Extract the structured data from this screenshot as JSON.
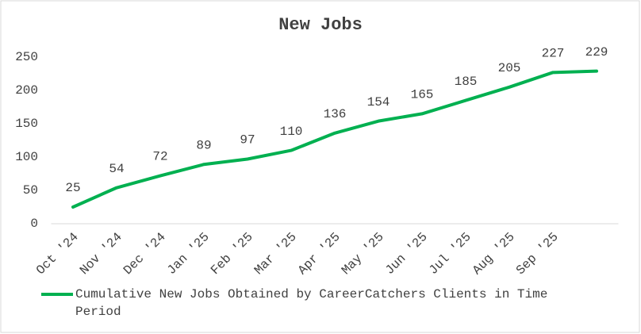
{
  "chart_data": {
    "type": "line",
    "title": "New Jobs",
    "categories": [
      "Oct '24",
      "Nov '24",
      "Dec '24",
      "Jan '25",
      "Feb '25",
      "Mar '25",
      "Apr '25",
      "May '25",
      "Jun '25",
      "Jul '25",
      "Aug '25",
      "Sep '25",
      null
    ],
    "series": [
      {
        "name": "Cumulative New Jobs Obtained by CareerCatchers Clients in Time Period",
        "color": "#00b050",
        "values": [
          25,
          54,
          72,
          89,
          97,
          110,
          136,
          154,
          165,
          185,
          205,
          227,
          229
        ]
      }
    ],
    "ylim": [
      0,
      250
    ],
    "yticks": [
      0,
      50,
      100,
      150,
      200,
      250
    ],
    "grid": false,
    "legend": "bottom"
  }
}
